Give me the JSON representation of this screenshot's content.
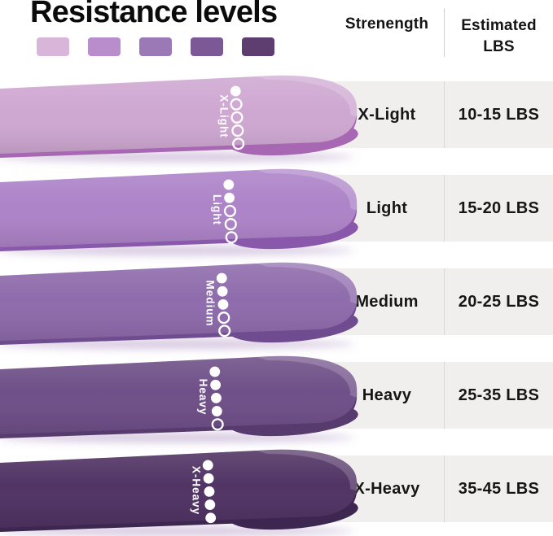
{
  "title": "Resistance levels",
  "swatches": [
    "#d8b5d9",
    "#b98ccb",
    "#9b79b6",
    "#7d5897",
    "#5e3d70"
  ],
  "table_header": {
    "strength": "Strenength",
    "estimated": "Estimated LBS"
  },
  "bands": [
    {
      "label": "X-Light",
      "lbs": "10-15 LBS",
      "dots_filled": 1,
      "dots_total": 5,
      "face_color": "#cfa8d2",
      "inner_color": "#a767b2"
    },
    {
      "label": "Light",
      "lbs": "15-20 LBS",
      "dots_filled": 2,
      "dots_total": 5,
      "face_color": "#ae84c8",
      "inner_color": "#8a58ab"
    },
    {
      "label": "Medium",
      "lbs": "20-25 LBS",
      "dots_filled": 3,
      "dots_total": 5,
      "face_color": "#8f6cac",
      "inner_color": "#6f4b90"
    },
    {
      "label": "Heavy",
      "lbs": "25-35 LBS",
      "dots_filled": 4,
      "dots_total": 5,
      "face_color": "#6f5088",
      "inner_color": "#573a6e"
    },
    {
      "label": "X-Heavy",
      "lbs": "35-45 LBS",
      "dots_filled": 5,
      "dots_total": 5,
      "face_color": "#513464",
      "inner_color": "#3d2650"
    }
  ],
  "chart_data": {
    "type": "table",
    "columns": [
      "Strenength",
      "Estimated LBS"
    ],
    "rows": [
      [
        "X-Light",
        "10-15 LBS"
      ],
      [
        "Light",
        "15-20 LBS"
      ],
      [
        "Medium",
        "20-25 LBS"
      ],
      [
        "Heavy",
        "25-35 LBS"
      ],
      [
        "X-Heavy",
        "35-45 LBS"
      ]
    ],
    "levels_dots_filled_of_5": [
      1,
      2,
      3,
      4,
      5
    ]
  },
  "colors": {
    "cell_background": "#f0efed",
    "divider": "#d8d7d5",
    "text": "#161616",
    "title_text": "#0b0b0b"
  }
}
